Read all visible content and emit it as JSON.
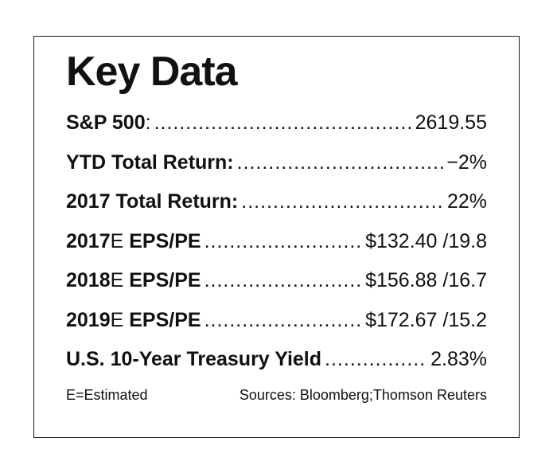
{
  "title": "Key Data",
  "rows": [
    {
      "label_bold": "S&P 500",
      "label_plain": ":",
      "label_bold2": "",
      "value": "2619.55"
    },
    {
      "label_bold": "YTD Total Return:",
      "label_plain": "",
      "label_bold2": "",
      "value": "−2%"
    },
    {
      "label_bold": "2017 Total Return:",
      "label_plain": "",
      "label_bold2": "",
      "value": "22%"
    },
    {
      "label_bold": "2017",
      "label_plain": "E",
      "label_bold2": " EPS/PE",
      "value": "$132.40 /19.8"
    },
    {
      "label_bold": "2018",
      "label_plain": "E",
      "label_bold2": " EPS/PE",
      "value": "$156.88 /16.7"
    },
    {
      "label_bold": "2019",
      "label_plain": "E",
      "label_bold2": " EPS/PE",
      "value": "$172.67 /15.2"
    },
    {
      "label_bold": "U.S. 10-Year Treasury Yield",
      "label_plain": "",
      "label_bold2": "",
      "value": "2.83%"
    }
  ],
  "footer": {
    "note": "E=Estimated",
    "sources": "Sources: Bloomberg;Thomson Reuters"
  }
}
